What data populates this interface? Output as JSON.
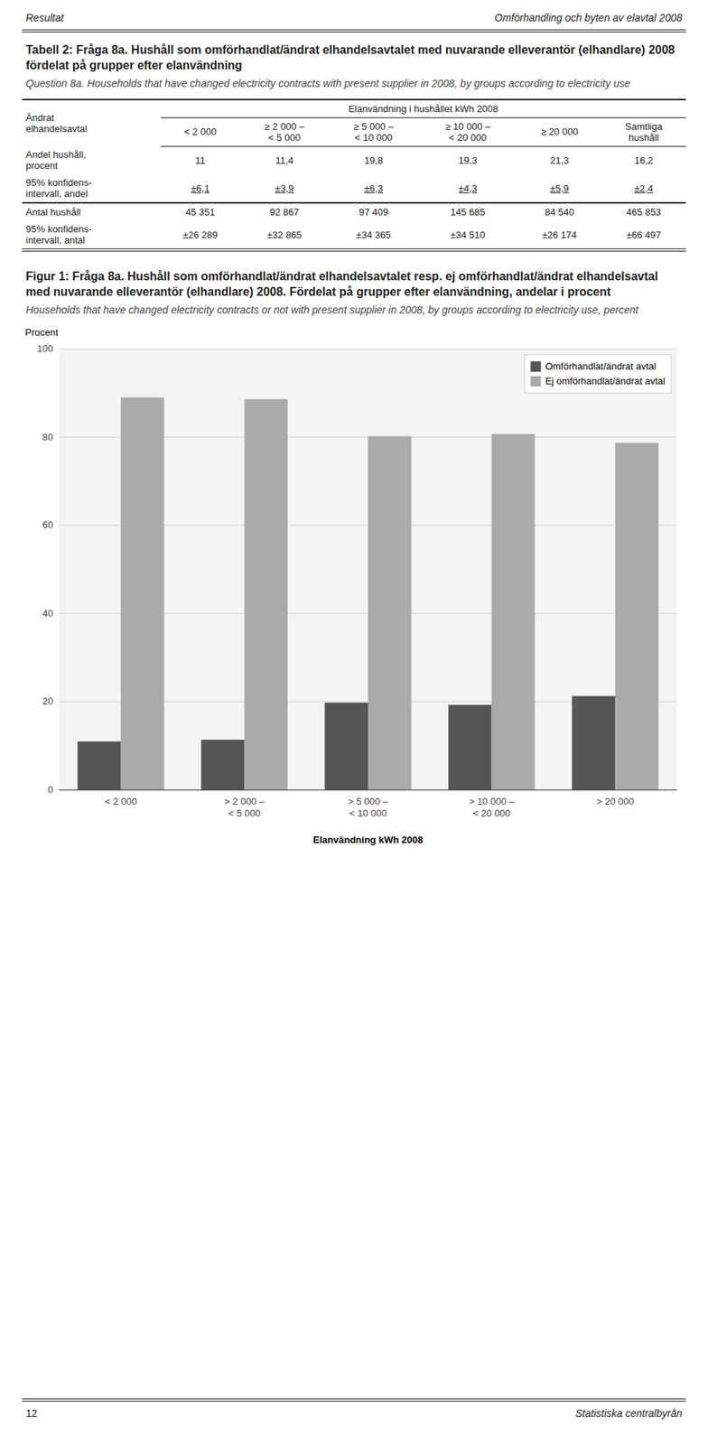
{
  "header_left": "Resultat",
  "header_right": "Omförhandling och byten av elavtal 2008",
  "table": {
    "title": "Tabell 2: Fråga 8a.  Hushåll som omförhandlat/ändrat elhandelsavtalet med nuvarande elleverantör (elhandlare) 2008 fördelat på grupper efter elanvändning",
    "subtitle": "Question 8a. Households that have changed electricity contracts with present supplier in 2008, by groups according to electricity use",
    "header_left": "Ändrat\nelhandelsavtal",
    "header_center": "Elanvändning i hushållet kWh 2008",
    "columns": [
      "< 2 000",
      "≥ 2 000 –\n< 5 000",
      "≥ 5 000 –\n< 10 000",
      "≥ 10 000 –\n< 20 000",
      "≥ 20 000",
      "Samtliga\nhushåll"
    ],
    "rows": [
      {
        "label": "Andel hushåll,\nprocent",
        "values": [
          "11",
          "11,4",
          "19,8",
          "19,3",
          "21,3",
          "16,2"
        ]
      },
      {
        "label": "95% konfidens-\nintervall, andel",
        "values": [
          "±6,1",
          "±3,9",
          "±6,3",
          "±4,3",
          "±5,9",
          "±2,4"
        ]
      },
      {
        "label": "Antal hushåll",
        "values": [
          "45 351",
          "92 867",
          "97 409",
          "145 685",
          "84 540",
          "465 853"
        ]
      },
      {
        "label": "95% konfidens-\nintervall, antal",
        "values": [
          "±26 289",
          "±32 865",
          "±34 365",
          "±34 510",
          "±26 174",
          "±66 497"
        ]
      }
    ]
  },
  "chart_data": {
    "type": "bar",
    "title": "Figur 1: Fråga 8a.  Hushåll som omförhandlat/ändrat elhandelsavtalet resp. ej omförhandlat/ändrat elhandelsavtal med nuvarande elleverantör (elhandlare) 2008. Fördelat på grupper efter elanvändning, andelar i procent",
    "subtitle": "Households that have changed electricity contracts or not with present supplier in 2008, by groups according to electricity use, percent",
    "ylabel": "Procent",
    "xlabel": "Elanvändning kWh 2008",
    "categories": [
      "< 2 000",
      "> 2 000 –\n< 5 000",
      "> 5 000 –\n< 10 000",
      "> 10 000 –\n< 20 000",
      "> 20 000"
    ],
    "series": [
      {
        "name": "Omförhandlat/ändrat avtal",
        "color": "#555555",
        "values": [
          11,
          11.4,
          19.8,
          19.3,
          21.3
        ]
      },
      {
        "name": "Ej omförhandlat/ändrat avtal",
        "color": "#aaaaaa",
        "values": [
          89,
          88.6,
          80.2,
          80.7,
          78.7
        ]
      }
    ],
    "ylim": [
      0,
      100
    ],
    "yticks": [
      0,
      20,
      40,
      60,
      80,
      100
    ],
    "grid": true,
    "legend": "upper-right"
  },
  "footer_left": "12",
  "footer_right": "Statistiska centralbyrån"
}
